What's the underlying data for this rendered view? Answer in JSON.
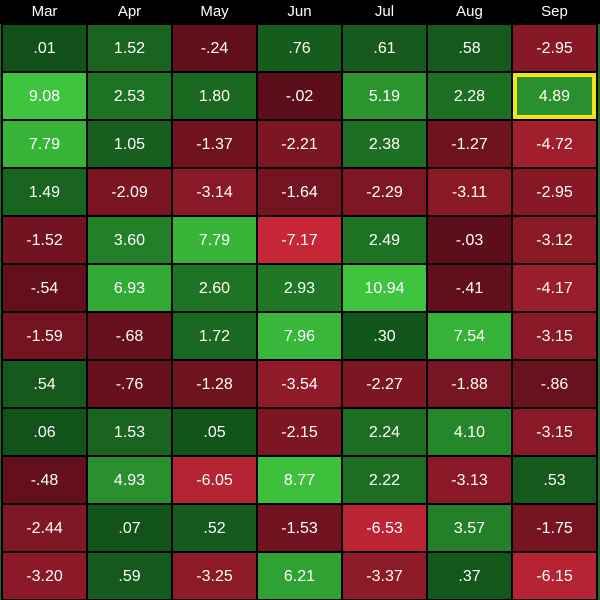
{
  "table": {
    "header": [
      "Mar",
      "Apr",
      "May",
      "Jun",
      "Jul",
      "Aug",
      "Sep"
    ],
    "rows": [
      [
        ".01",
        "1.52",
        "-.24",
        ".76",
        ".61",
        ".58",
        "-2.95"
      ],
      [
        "9.08",
        "2.53",
        "1.80",
        "-.02",
        "5.19",
        "2.28",
        "4.89"
      ],
      [
        "7.79",
        "1.05",
        "-1.37",
        "-2.21",
        "2.38",
        "-1.27",
        "-4.72"
      ],
      [
        "1.49",
        "-2.09",
        "-3.14",
        "-1.64",
        "-2.29",
        "-3.11",
        "-2.95"
      ],
      [
        "-1.52",
        "3.60",
        "7.79",
        "-7.17",
        "2.49",
        "-.03",
        "-3.12"
      ],
      [
        "-.54",
        "6.93",
        "2.60",
        "2.93",
        "10.94",
        "-.41",
        "-4.17"
      ],
      [
        "-1.59",
        "-.68",
        "1.72",
        "7.96",
        ".30",
        "7.54",
        "-3.15"
      ],
      [
        ".54",
        "-.76",
        "-1.28",
        "-3.54",
        "-2.27",
        "-1.88",
        "-.86"
      ],
      [
        ".06",
        "1.53",
        ".05",
        "-2.15",
        "2.24",
        "4.10",
        "-3.15"
      ],
      [
        "-.48",
        "4.93",
        "-6.05",
        "8.77",
        "2.22",
        "-3.13",
        ".53"
      ],
      [
        "-2.44",
        ".07",
        ".52",
        "-1.53",
        "-6.53",
        "3.57",
        "-1.75"
      ],
      [
        "-3.20",
        ".59",
        "-3.25",
        "6.21",
        "-3.37",
        ".37",
        "-6.15"
      ]
    ],
    "highlight": {
      "row": 1,
      "col": 6
    }
  }
}
